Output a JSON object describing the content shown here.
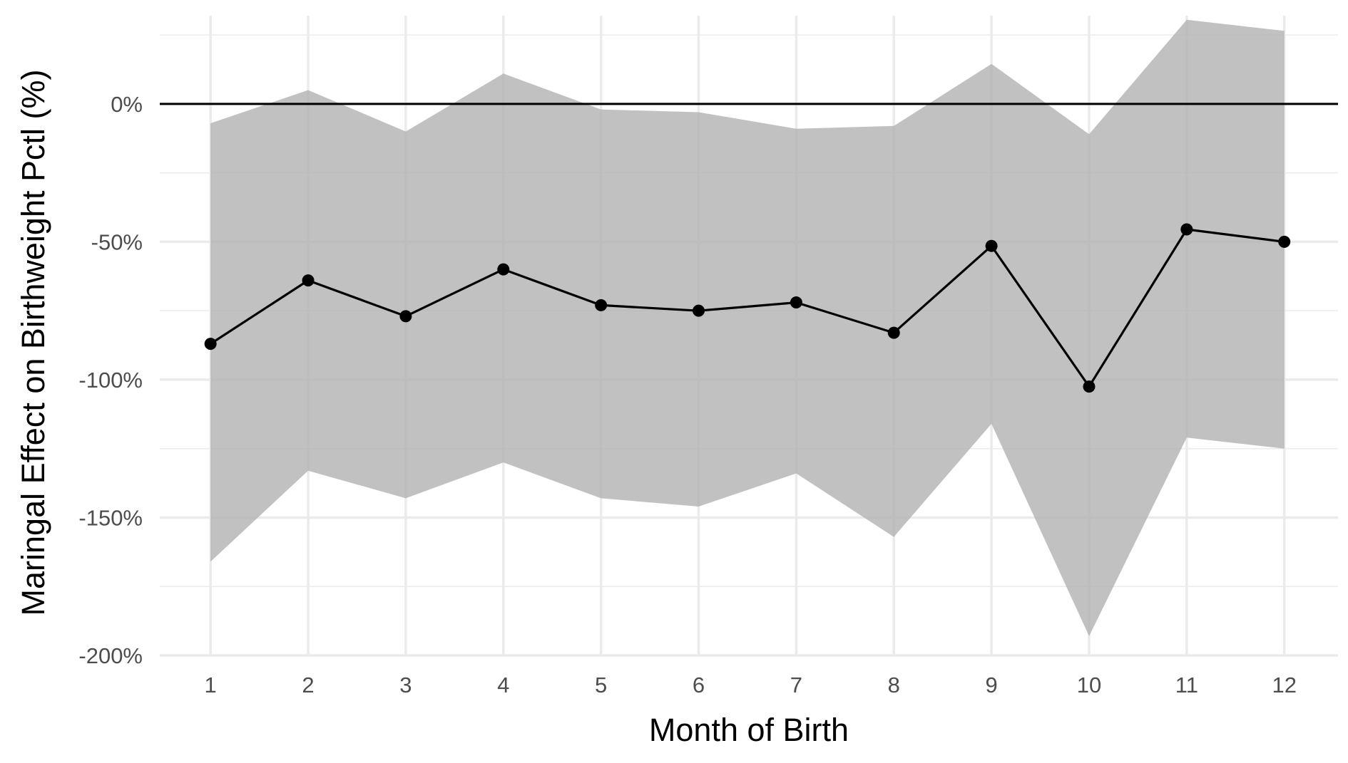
{
  "chart_data": {
    "type": "line",
    "xlabel": "Month of Birth",
    "ylabel": "Maringal Effect on Birthweight Pctl (%)",
    "x": [
      1,
      2,
      3,
      4,
      5,
      6,
      7,
      8,
      9,
      10,
      11,
      12
    ],
    "x_tick_labels": [
      "1",
      "2",
      "3",
      "4",
      "5",
      "6",
      "7",
      "8",
      "9",
      "10",
      "11",
      "12"
    ],
    "y_ticks": [
      0,
      -50,
      -100,
      -150,
      -200
    ],
    "y_tick_labels": [
      "0%",
      "-50%",
      "-100%",
      "-150%",
      "-200%"
    ],
    "xlim": [
      0.48,
      12.55
    ],
    "ylim": [
      -200,
      32
    ],
    "grid": true,
    "reference_line_y": 0,
    "series": [
      {
        "values": [
          -87,
          -64,
          -77,
          -60,
          -73,
          -75,
          -72,
          -83,
          -51.5,
          -102.5,
          -45.5,
          -50
        ],
        "lower": [
          -166,
          -133,
          -143,
          -130,
          -143,
          -146,
          -134,
          -157,
          -116,
          -193,
          -121,
          -125
        ],
        "upper": [
          -7,
          5,
          -10,
          11,
          -2,
          -3,
          -9,
          -8,
          14.5,
          -11,
          30.5,
          26.5
        ]
      }
    ],
    "colors": {
      "line": "#000000",
      "ribbon": "#b0b0b0",
      "grid": "#ebebeb",
      "zero_line": "#000000"
    }
  }
}
